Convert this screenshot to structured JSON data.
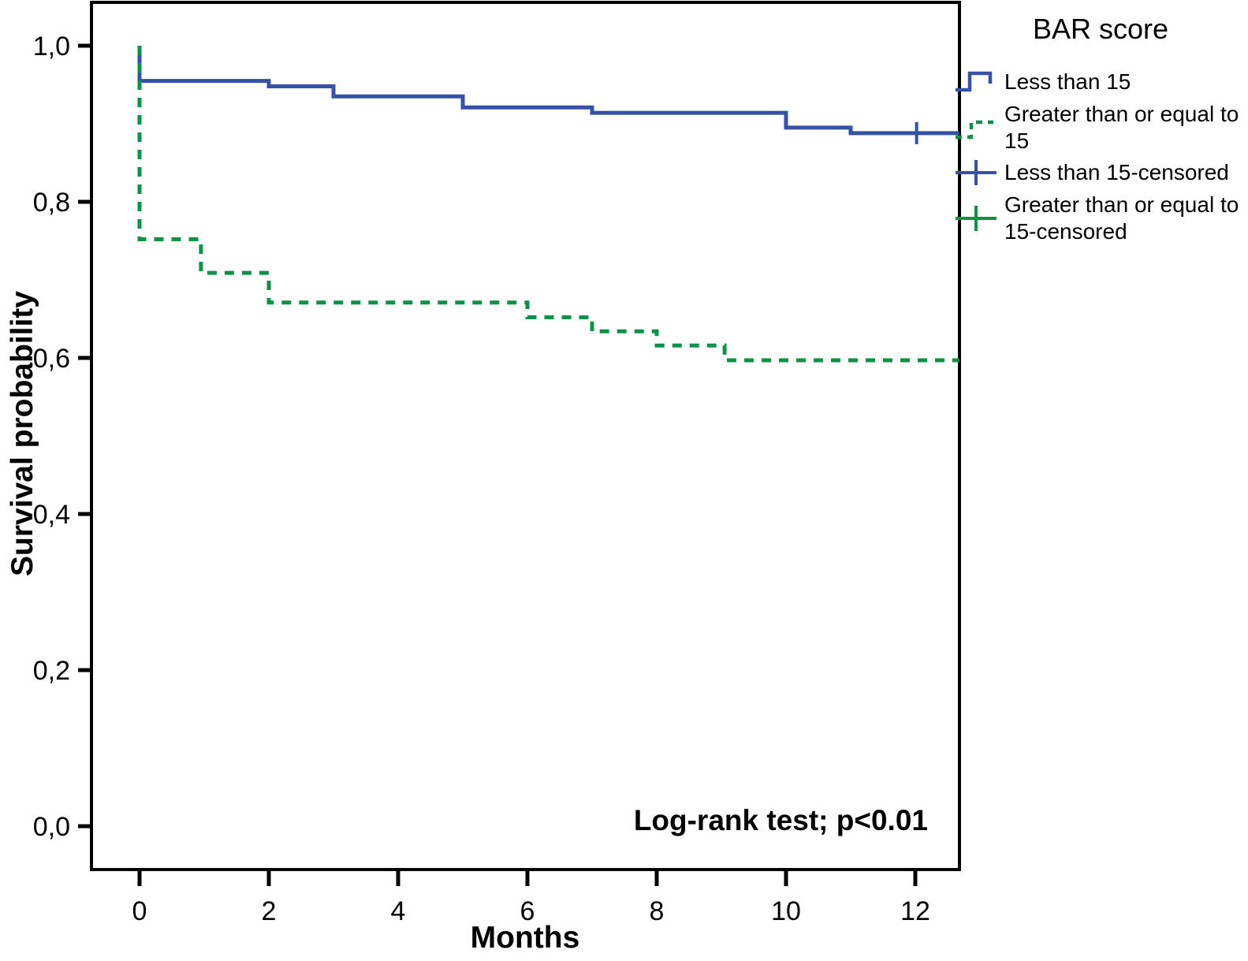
{
  "chart_data": {
    "type": "line",
    "subtype": "kaplan-meier-step",
    "title": "",
    "xlabel": "Months",
    "ylabel": "Survival probability",
    "annotation": "Log-rank test; p<0.01",
    "legend_title": "BAR score",
    "legend_position": "right",
    "grid": false,
    "xlim": [
      -0.74,
      12.68
    ],
    "ylim": [
      -0.06,
      1.05
    ],
    "x_ticks": [
      {
        "v": 0,
        "label": "0"
      },
      {
        "v": 2,
        "label": "2"
      },
      {
        "v": 4,
        "label": "4"
      },
      {
        "v": 6,
        "label": "6"
      },
      {
        "v": 8,
        "label": "8"
      },
      {
        "v": 10,
        "label": "10"
      },
      {
        "v": 12,
        "label": "12"
      }
    ],
    "y_ticks": [
      {
        "v": 1.0,
        "label": "1,0"
      },
      {
        "v": 0.8,
        "label": "0,8"
      },
      {
        "v": 0.6,
        "label": "0,6"
      },
      {
        "v": 0.4,
        "label": "0,4"
      },
      {
        "v": 0.2,
        "label": "0,2"
      },
      {
        "v": 0.0,
        "label": "0,0"
      }
    ],
    "series": [
      {
        "id": "lt15",
        "name": "Less than 15",
        "color": "#3551a8",
        "dash": null,
        "points": [
          [
            0,
            1.0
          ],
          [
            0,
            0.955
          ],
          [
            2,
            0.955
          ],
          [
            2,
            0.948
          ],
          [
            3,
            0.948
          ],
          [
            3,
            0.935
          ],
          [
            5,
            0.935
          ],
          [
            5,
            0.921
          ],
          [
            7,
            0.921
          ],
          [
            7,
            0.914
          ],
          [
            10,
            0.914
          ],
          [
            10,
            0.895
          ],
          [
            11,
            0.895
          ],
          [
            11,
            0.888
          ],
          [
            12.68,
            0.888
          ]
        ],
        "censored": [
          [
            12.02,
            0.888
          ]
        ]
      },
      {
        "id": "ge15",
        "name": "Greater than or equal to 15",
        "color": "#0a9347",
        "dash": [
          12,
          10
        ],
        "points": [
          [
            0,
            1.0
          ],
          [
            0,
            0.752
          ],
          [
            0.95,
            0.752
          ],
          [
            0.95,
            0.709
          ],
          [
            2,
            0.709
          ],
          [
            2,
            0.671
          ],
          [
            6,
            0.671
          ],
          [
            6,
            0.652
          ],
          [
            7,
            0.652
          ],
          [
            7,
            0.634
          ],
          [
            8,
            0.634
          ],
          [
            8,
            0.616
          ],
          [
            9.05,
            0.616
          ],
          [
            9.05,
            0.597
          ],
          [
            12.68,
            0.597
          ]
        ],
        "censored": []
      }
    ],
    "legend_items": [
      {
        "label": "Less than 15",
        "series": "lt15",
        "marker": "step-line"
      },
      {
        "label": "Greater than or equal to 15",
        "series": "ge15",
        "marker": "dashed-step-line"
      },
      {
        "label": "Less than 15-censored",
        "series": "lt15",
        "marker": "censor-plus"
      },
      {
        "label": "Greater than or equal to 15-censored",
        "series": "ge15",
        "marker": "censor-plus"
      }
    ]
  }
}
